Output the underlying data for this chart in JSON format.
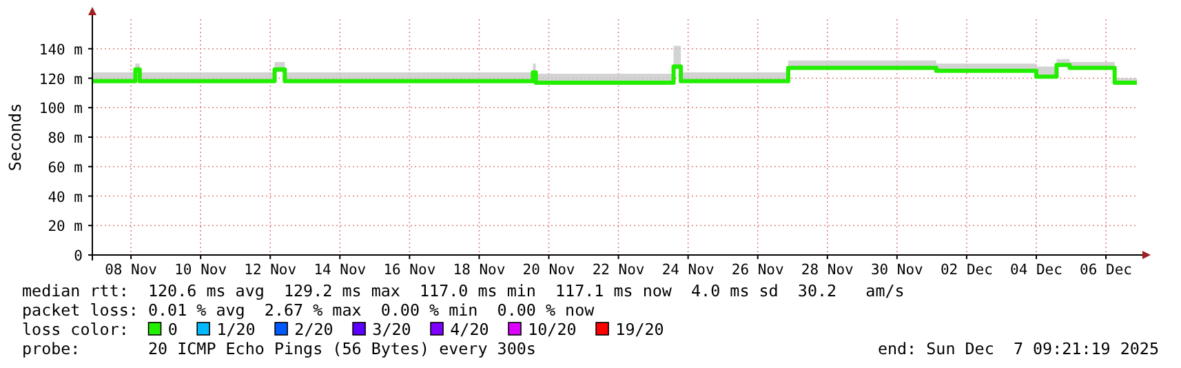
{
  "chart_data": {
    "type": "step",
    "ylabel": "Seconds",
    "xlim": [
      "2025-11-07T09:21",
      "2025-12-07T09:21"
    ],
    "xticks": [
      {
        "value": "2025-11-08T12:00",
        "label": "08 Nov"
      },
      {
        "value": "2025-11-10T12:00",
        "label": "10 Nov"
      },
      {
        "value": "2025-11-12T12:00",
        "label": "12 Nov"
      },
      {
        "value": "2025-11-14T12:00",
        "label": "14 Nov"
      },
      {
        "value": "2025-11-16T12:00",
        "label": "16 Nov"
      },
      {
        "value": "2025-11-18T12:00",
        "label": "18 Nov"
      },
      {
        "value": "2025-11-20T12:00",
        "label": "20 Nov"
      },
      {
        "value": "2025-11-22T12:00",
        "label": "22 Nov"
      },
      {
        "value": "2025-11-24T12:00",
        "label": "24 Nov"
      },
      {
        "value": "2025-11-26T12:00",
        "label": "26 Nov"
      },
      {
        "value": "2025-11-28T12:00",
        "label": "28 Nov"
      },
      {
        "value": "2025-11-30T12:00",
        "label": "30 Nov"
      },
      {
        "value": "2025-12-02T12:00",
        "label": "02 Dec"
      },
      {
        "value": "2025-12-04T12:00",
        "label": "04 Dec"
      },
      {
        "value": "2025-12-06T12:00",
        "label": "06 Dec"
      }
    ],
    "ylim": [
      0,
      160
    ],
    "yticks": [
      0,
      {
        "value": 20,
        "label": "20 m"
      },
      {
        "value": 40,
        "label": "40 m"
      },
      {
        "value": 60,
        "label": "60 m"
      },
      {
        "value": 80,
        "label": "80 m"
      },
      {
        "value": 100,
        "label": "100 m"
      },
      {
        "value": 120,
        "label": "120 m"
      },
      {
        "value": 140,
        "label": "140 m"
      }
    ],
    "grid": true,
    "legend": "bottom",
    "legend_title": "loss color:",
    "series": [
      {
        "name": "0",
        "color": "#22ee00",
        "x": [
          "2025-11-07T09:21",
          "2025-11-08T15:00",
          "2025-11-08T18:00",
          "2025-11-12T15:00",
          "2025-11-12T22:00",
          "2025-11-20T01:00",
          "2025-11-20T03:00",
          "2025-11-24T02:00",
          "2025-11-24T07:00",
          "2025-11-27T09:00",
          "2025-12-01T06:00",
          "2025-12-01T15:00",
          "2025-12-04T12:00",
          "2025-12-05T02:00",
          "2025-12-05T11:00",
          "2025-12-06T18:00",
          "2025-12-07T09:21"
        ],
        "values": [
          118,
          126,
          118,
          126,
          118,
          124,
          117,
          128,
          118,
          127,
          127,
          125,
          121,
          129,
          127,
          117,
          117
        ],
        "lower": [
          117,
          124,
          117,
          124,
          117,
          122,
          116,
          126,
          117,
          126,
          126,
          124,
          120,
          128,
          126,
          116,
          116
        ],
        "upper": [
          124,
          130,
          124,
          131,
          124,
          130,
          123,
          142,
          124,
          132,
          132,
          130,
          128,
          133,
          131,
          120,
          120
        ]
      },
      {
        "name": "1/20",
        "color": "#00b8ff"
      },
      {
        "name": "2/20",
        "color": "#0059ff"
      },
      {
        "name": "3/20",
        "color": "#5e00ff"
      },
      {
        "name": "4/20",
        "color": "#7e00ff"
      },
      {
        "name": "10/20",
        "color": "#dd00ff"
      },
      {
        "name": "19/20",
        "color": "#ff0000"
      }
    ],
    "annotations": [
      "median rtt:  120.6 ms avg  129.2 ms max  117.0 ms min  117.1 ms now  4.0 ms sd  30.2   am/s",
      "packet loss: 0.01 % avg  2.67 % max  0.00 % min  0.00 % now",
      "probe:       20 ICMP Echo Pings (56 Bytes) every 300s",
      "end: Sun Dec  7 09:21:19 2025"
    ]
  }
}
